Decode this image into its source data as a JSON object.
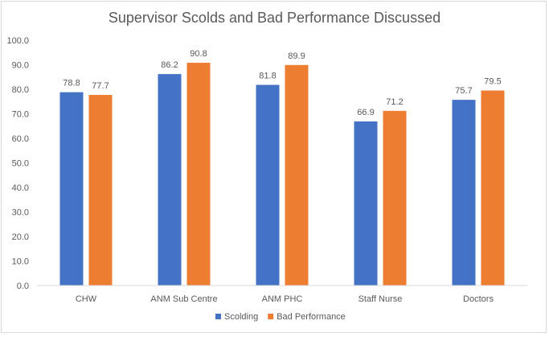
{
  "chart_data": {
    "type": "bar",
    "title": "Supervisor Scolds and Bad Performance Discussed",
    "categories": [
      "CHW",
      "ANM Sub Centre",
      "ANM PHC",
      "Staff Nurse",
      "Doctors"
    ],
    "series": [
      {
        "name": "Scolding",
        "color": "#4472c4",
        "values": [
          78.8,
          86.2,
          81.8,
          66.9,
          75.7
        ]
      },
      {
        "name": "Bad Performance",
        "color": "#ed7d31",
        "values": [
          77.7,
          90.8,
          89.9,
          71.2,
          79.5
        ]
      }
    ],
    "yticks": [
      "0.0",
      "10.0",
      "20.0",
      "30.0",
      "40.0",
      "50.0",
      "60.0",
      "70.0",
      "80.0",
      "90.0",
      "100.0"
    ],
    "ylim": [
      0,
      100
    ],
    "xlabel": "",
    "ylabel": "",
    "grid": false,
    "legend": "bottom"
  }
}
